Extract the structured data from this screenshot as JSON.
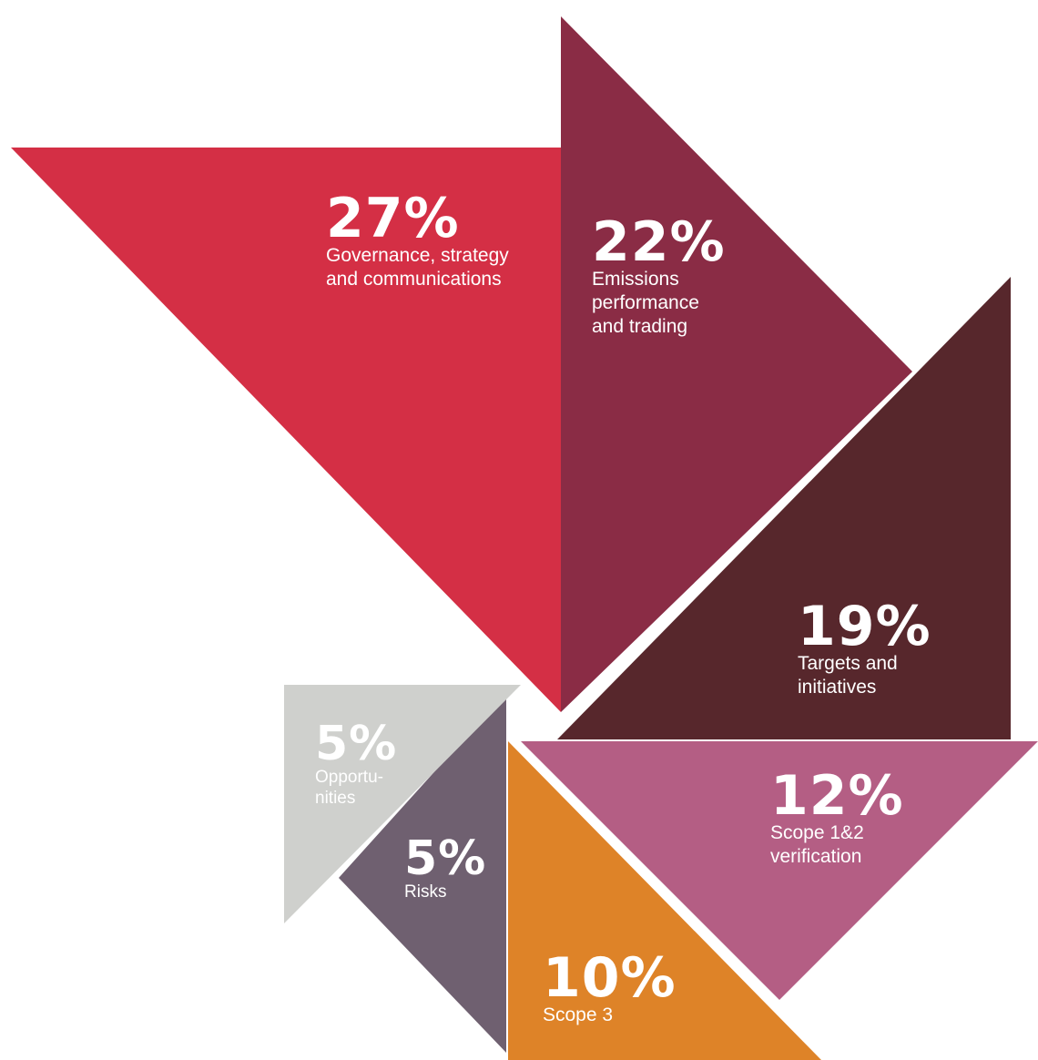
{
  "chart_data": {
    "type": "pie",
    "values": [
      27,
      22,
      19,
      12,
      10,
      5,
      5
    ],
    "labels": [
      "27%",
      "22%",
      "19%",
      "12%",
      "10%",
      "5%",
      "5%"
    ],
    "categories": [
      "Governance, strategy\nand communications",
      "Emissions\nperformance\nand trading",
      "Targets and\ninitiatives",
      "Scope 1&2\nverification",
      "Scope 3",
      "Risks",
      "Opportu-\nnities"
    ],
    "colors": [
      "#d42f45",
      "#8a2c45",
      "#57272c",
      "#b45e84",
      "#de8328",
      "#6f6070",
      "#cfd0cd"
    ]
  }
}
